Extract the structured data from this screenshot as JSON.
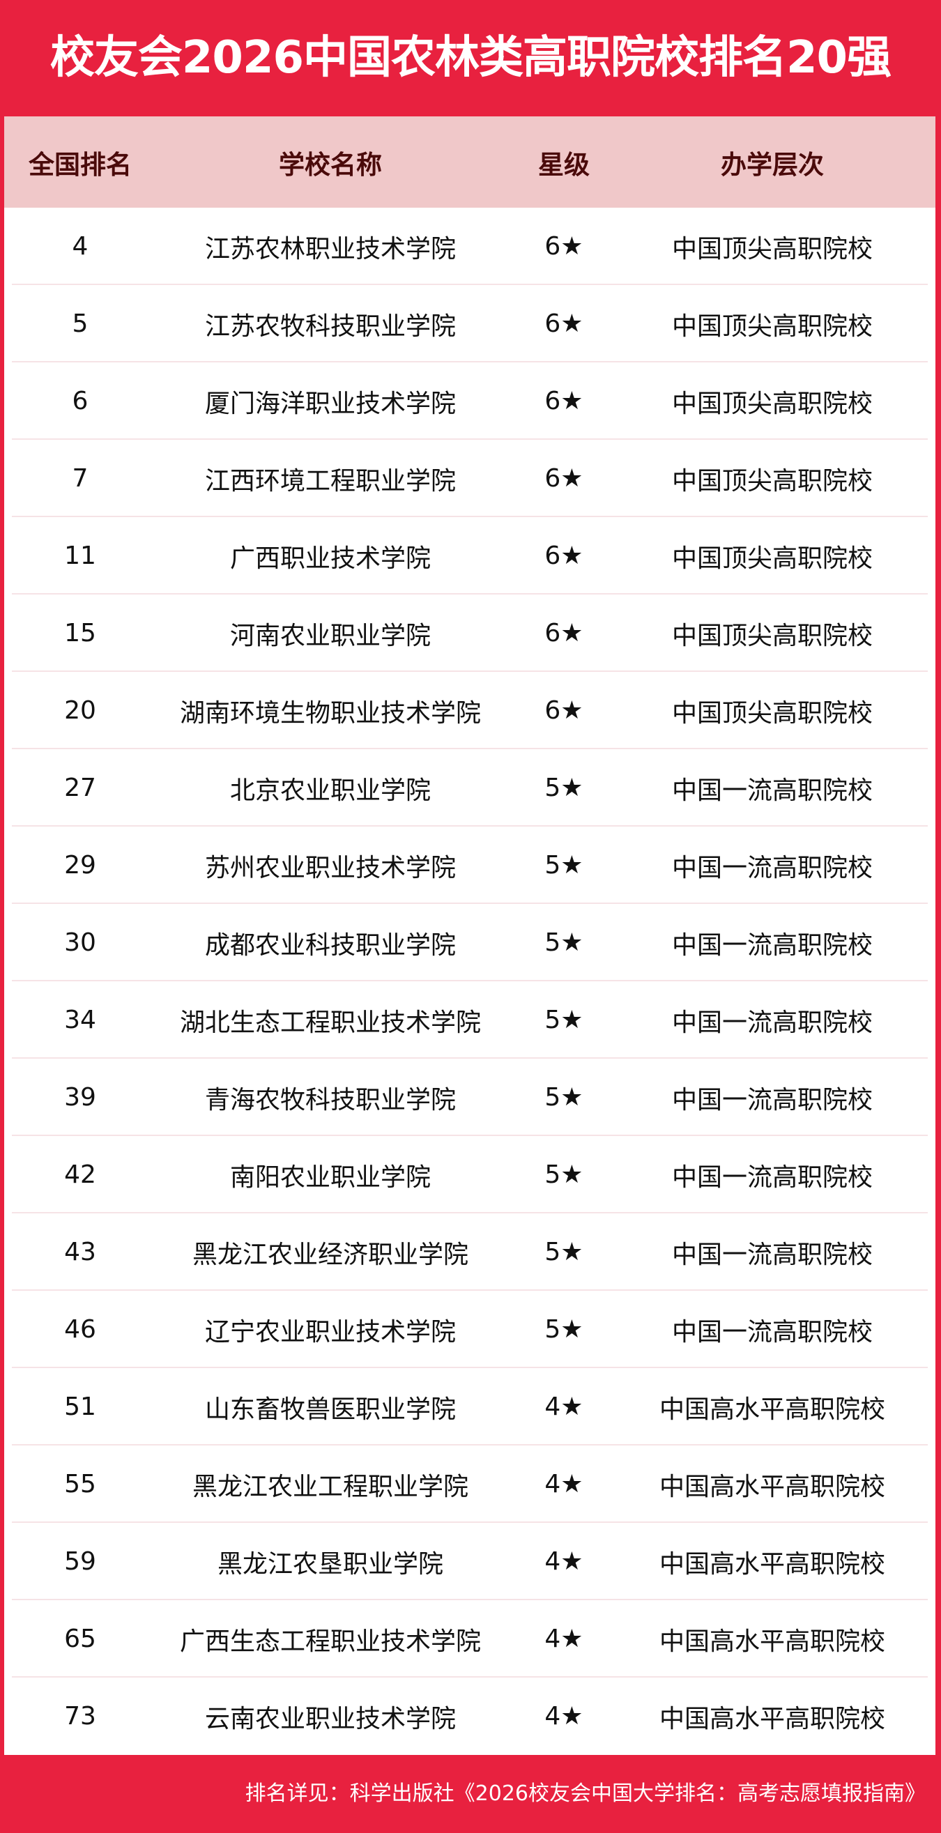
{
  "title": "校友会2026中国农林类高职院校排名20强",
  "headers": [
    "全国排名",
    "学校名称",
    "星级",
    "办学层次"
  ],
  "rows": [
    [
      "4",
      "江苏农林职业技术学院",
      "6★",
      "中国顶尖高职院校"
    ],
    [
      "5",
      "江苏农牧科技职业学院",
      "6★",
      "中国顶尖高职院校"
    ],
    [
      "6",
      "厦门海洋职业技术学院",
      "6★",
      "中国顶尖高职院校"
    ],
    [
      "7",
      "江西环境工程职业学院",
      "6★",
      "中国顶尖高职院校"
    ],
    [
      "11",
      "广西职业技术学院",
      "6★",
      "中国顶尖高职院校"
    ],
    [
      "15",
      "河南农业职业学院",
      "6★",
      "中国顶尖高职院校"
    ],
    [
      "20",
      "湖南环境生物职业技术学院",
      "6★",
      "中国顶尖高职院校"
    ],
    [
      "27",
      "北京农业职业学院",
      "5★",
      "中国一流高职院校"
    ],
    [
      "29",
      "苏州农业职业技术学院",
      "5★",
      "中国一流高职院校"
    ],
    [
      "30",
      "成都农业科技职业学院",
      "5★",
      "中国一流高职院校"
    ],
    [
      "34",
      "湖北生态工程职业技术学院",
      "5★",
      "中国一流高职院校"
    ],
    [
      "39",
      "青海农牧科技职业学院",
      "5★",
      "中国一流高职院校"
    ],
    [
      "42",
      "南阳农业职业学院",
      "5★",
      "中国一流高职院校"
    ],
    [
      "43",
      "黑龙江农业经济职业学院",
      "5★",
      "中国一流高职院校"
    ],
    [
      "46",
      "辽宁农业职业技术学院",
      "5★",
      "中国一流高职院校"
    ],
    [
      "51",
      "山东畜牧兽医职业学院",
      "4★",
      "中国高水平高职院校"
    ],
    [
      "55",
      "黑龙江农业工程职业学院",
      "4★",
      "中国高水平高职院校"
    ],
    [
      "59",
      "黑龙江农垦职业学院",
      "4★",
      "中国高水平高职院校"
    ],
    [
      "65",
      "广西生态工程职业技术学院",
      "4★",
      "中国高水平高职院校"
    ],
    [
      "73",
      "云南农业职业技术学院",
      "4★",
      "中国高水平高职院校"
    ]
  ],
  "footer": "排名详见：科学出版社《2026校友会中国大学排名：高考志愿填报指南》",
  "colors": {
    "brand": "#e8213f",
    "header_bg": "#f0c8c9",
    "header_text": "#4a0a0a"
  }
}
